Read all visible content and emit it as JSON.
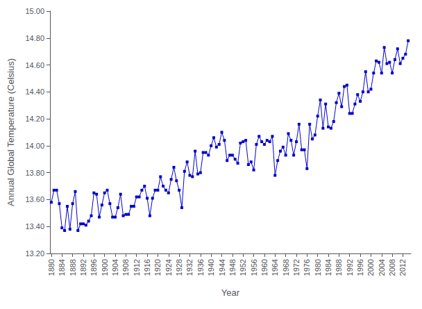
{
  "chart_data": {
    "type": "line",
    "xlabel": "Year",
    "ylabel": "Annual Global Temperature (Celsius)",
    "x": [
      1880,
      1881,
      1882,
      1883,
      1884,
      1885,
      1886,
      1887,
      1888,
      1889,
      1890,
      1891,
      1892,
      1893,
      1894,
      1895,
      1896,
      1897,
      1898,
      1899,
      1900,
      1901,
      1902,
      1903,
      1904,
      1905,
      1906,
      1907,
      1908,
      1909,
      1910,
      1911,
      1912,
      1913,
      1914,
      1915,
      1916,
      1917,
      1918,
      1919,
      1920,
      1921,
      1922,
      1923,
      1924,
      1925,
      1926,
      1927,
      1928,
      1929,
      1930,
      1931,
      1932,
      1933,
      1934,
      1935,
      1936,
      1937,
      1938,
      1939,
      1940,
      1941,
      1942,
      1943,
      1944,
      1945,
      1946,
      1947,
      1948,
      1949,
      1950,
      1951,
      1952,
      1953,
      1954,
      1955,
      1956,
      1957,
      1958,
      1959,
      1960,
      1961,
      1962,
      1963,
      1964,
      1965,
      1966,
      1967,
      1968,
      1969,
      1970,
      1971,
      1972,
      1973,
      1974,
      1975,
      1976,
      1977,
      1978,
      1979,
      1980,
      1981,
      1982,
      1983,
      1984,
      1985,
      1986,
      1987,
      1988,
      1989,
      1990,
      1991,
      1992,
      1993,
      1994,
      1995,
      1996,
      1997,
      1998,
      1999,
      2000,
      2001,
      2002,
      2003,
      2004,
      2005,
      2006,
      2007,
      2008,
      2009,
      2010,
      2011,
      2012,
      2013,
      2014
    ],
    "values": [
      13.58,
      13.67,
      13.67,
      13.57,
      13.39,
      13.37,
      13.55,
      13.38,
      13.57,
      13.66,
      13.37,
      13.42,
      13.42,
      13.41,
      13.44,
      13.48,
      13.65,
      13.64,
      13.47,
      13.56,
      13.65,
      13.67,
      13.57,
      13.47,
      13.47,
      13.54,
      13.64,
      13.48,
      13.49,
      13.49,
      13.55,
      13.55,
      13.62,
      13.62,
      13.67,
      13.7,
      13.61,
      13.48,
      13.61,
      13.67,
      13.67,
      13.77,
      13.7,
      13.67,
      13.65,
      13.75,
      13.84,
      13.74,
      13.67,
      13.54,
      13.81,
      13.88,
      13.78,
      13.77,
      13.96,
      13.79,
      13.8,
      13.95,
      13.95,
      13.93,
      14.0,
      14.06,
      13.99,
      14.01,
      14.1,
      14.04,
      13.89,
      13.93,
      13.93,
      13.9,
      13.87,
      14.02,
      14.03,
      14.04,
      13.86,
      13.88,
      13.82,
      14.01,
      14.07,
      14.03,
      14.01,
      14.04,
      14.03,
      14.07,
      13.78,
      13.89,
      13.96,
      13.99,
      13.93,
      14.09,
      14.04,
      13.93,
      14.03,
      14.16,
      13.97,
      13.97,
      13.83,
      14.16,
      14.05,
      14.08,
      14.22,
      14.34,
      14.13,
      14.31,
      14.14,
      14.13,
      14.18,
      14.32,
      14.39,
      14.29,
      14.44,
      14.45,
      14.24,
      14.24,
      14.31,
      14.38,
      14.33,
      14.4,
      14.55,
      14.4,
      14.42,
      14.54,
      14.63,
      14.62,
      14.54,
      14.73,
      14.61,
      14.62,
      14.54,
      14.64,
      14.72,
      14.61,
      14.65,
      14.68,
      14.78
    ],
    "color": "#0000CC",
    "marker": "square",
    "xlim": [
      1879.5,
      2015.0
    ],
    "xticks": [
      1880,
      1884,
      1888,
      1892,
      1896,
      1900,
      1904,
      1908,
      1912,
      1916,
      1920,
      1924,
      1928,
      1932,
      1936,
      1940,
      1944,
      1948,
      1952,
      1956,
      1960,
      1964,
      1968,
      1972,
      1976,
      1980,
      1984,
      1988,
      1992,
      1996,
      2000,
      2004,
      2008,
      2012
    ],
    "ylim": [
      13.2,
      15.0
    ],
    "yticks": [
      {
        "value": 13.2,
        "label": "13.20"
      },
      {
        "value": 13.4,
        "label": "13.40"
      },
      {
        "value": 13.6,
        "label": "13.60"
      },
      {
        "value": 13.8,
        "label": "13.80"
      },
      {
        "value": 14.0,
        "label": "14.00"
      },
      {
        "value": 14.2,
        "label": "14.20"
      },
      {
        "value": 14.4,
        "label": "14.40"
      },
      {
        "value": 14.6,
        "label": "14.60"
      },
      {
        "value": 14.8,
        "label": "14.80"
      },
      {
        "value": 15.0,
        "label": "15.00"
      }
    ],
    "grid": false
  }
}
